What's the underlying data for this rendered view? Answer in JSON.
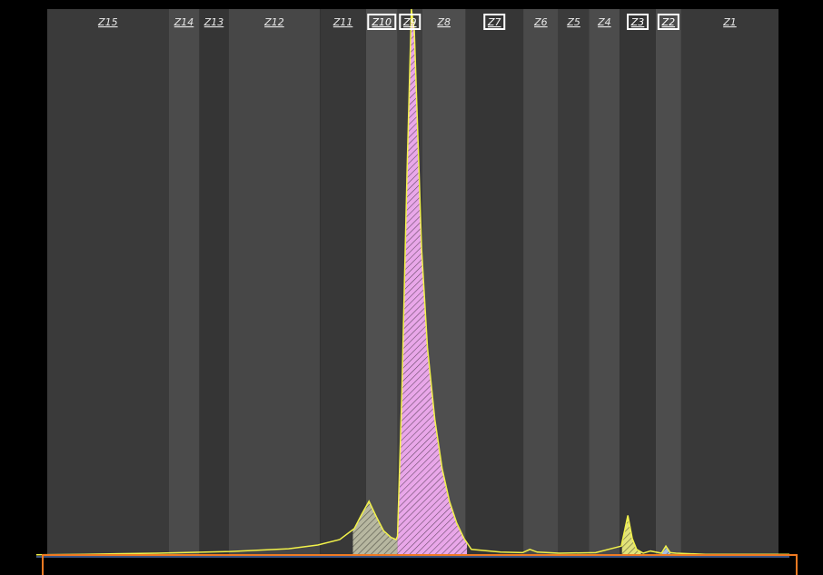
{
  "chart_data": {
    "type": "area",
    "x_range": [
      0,
      100
    ],
    "y_range": [
      0,
      100
    ],
    "zones": [
      {
        "label": "Z15",
        "start": 0.0,
        "end": 16.6,
        "boxed": false,
        "shade": "#3a3a3a"
      },
      {
        "label": "Z14",
        "start": 16.6,
        "end": 20.8,
        "boxed": false,
        "shade": "#4b4b4b"
      },
      {
        "label": "Z13",
        "start": 20.8,
        "end": 24.8,
        "boxed": false,
        "shade": "#353535"
      },
      {
        "label": "Z12",
        "start": 24.8,
        "end": 37.3,
        "boxed": false,
        "shade": "#474747"
      },
      {
        "label": "Z11",
        "start": 37.3,
        "end": 43.6,
        "boxed": false,
        "shade": "#383838"
      },
      {
        "label": "Z10",
        "start": 43.6,
        "end": 47.9,
        "boxed": true,
        "shade": "#505050"
      },
      {
        "label": "Z9",
        "start": 47.9,
        "end": 51.3,
        "boxed": true,
        "shade": "#3e3e3e"
      },
      {
        "label": "Z8",
        "start": 51.3,
        "end": 57.2,
        "boxed": false,
        "shade": "#4e4e4e"
      },
      {
        "label": "Z7",
        "start": 57.2,
        "end": 65.1,
        "boxed": true,
        "shade": "#363636"
      },
      {
        "label": "Z6",
        "start": 65.1,
        "end": 69.9,
        "boxed": false,
        "shade": "#4a4a4a"
      },
      {
        "label": "Z5",
        "start": 69.9,
        "end": 74.1,
        "boxed": false,
        "shade": "#3b3b3b"
      },
      {
        "label": "Z4",
        "start": 74.1,
        "end": 78.3,
        "boxed": false,
        "shade": "#4c4c4c"
      },
      {
        "label": "Z3",
        "start": 78.3,
        "end": 83.2,
        "boxed": true,
        "shade": "#353535"
      },
      {
        "label": "Z2",
        "start": 83.2,
        "end": 86.7,
        "boxed": true,
        "shade": "#4d4d4d"
      },
      {
        "label": "Z1",
        "start": 86.7,
        "end": 100.0,
        "boxed": false,
        "shade": "#393939"
      }
    ],
    "profile": {
      "x": [
        -1.5,
        5,
        15,
        25,
        33,
        37,
        40,
        42,
        43,
        44,
        45,
        46,
        47,
        47.7,
        47.9,
        48.5,
        49.2,
        49.8,
        50.2,
        50.6,
        51.2,
        52,
        53,
        54,
        55,
        56,
        57,
        58,
        62,
        65,
        66,
        67,
        70,
        75,
        78.5,
        79.4,
        80,
        80.6,
        81.5,
        82.5,
        84,
        84.6,
        85.2,
        86,
        90,
        95,
        101.5
      ],
      "y": [
        0.2,
        0.3,
        0.5,
        0.8,
        1.3,
        2.0,
        3.0,
        5.0,
        7.6,
        10.0,
        7.2,
        4.6,
        3.4,
        3.0,
        3.6,
        30,
        70,
        100,
        96,
        80,
        56,
        38,
        25,
        16,
        10,
        6,
        3.2,
        1.2,
        0.7,
        0.6,
        1.2,
        0.7,
        0.5,
        0.6,
        1.8,
        7.4,
        3.2,
        1.2,
        0.5,
        0.9,
        0.5,
        1.8,
        0.6,
        0.5,
        0.3,
        0.3,
        0.3
      ]
    },
    "fills": [
      {
        "from": 41.8,
        "to": 47.9,
        "color": "#b7b7a0",
        "hatch": true
      },
      {
        "from": 47.9,
        "to": 57.4,
        "color": "#e9a7e9",
        "hatch": true
      },
      {
        "from": 78.6,
        "to": 81.2,
        "color": "#e2e27a",
        "hatch": true
      },
      {
        "from": 84.1,
        "to": 85.2,
        "color": "#a7bfe0",
        "hatch": true
      }
    ],
    "colors": {
      "background": "#000000",
      "profile_line": "#f2f24a",
      "baseline": "#5f86d0",
      "frame": "#f07a22"
    }
  }
}
